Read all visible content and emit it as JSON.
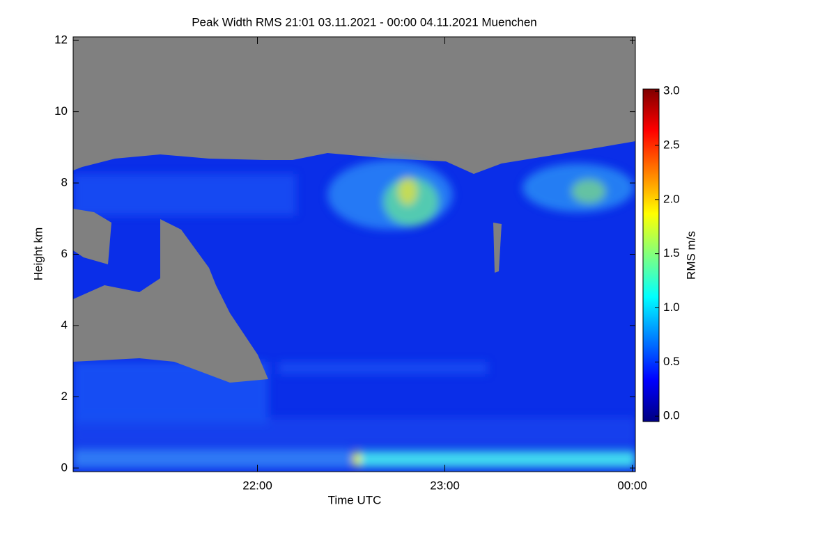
{
  "chart_data": {
    "type": "heatmap",
    "title": "Peak Width RMS   21:01 03.11.2021 - 00:00 04.11.2021 Muenchen",
    "x_label": "Time UTC",
    "y_label": "Height km",
    "xlim": [
      1261,
      1441
    ],
    "xticks": [
      {
        "value": 1320,
        "label": "22:00"
      },
      {
        "value": 1380,
        "label": "23:00"
      },
      {
        "value": 1440,
        "label": "00:00"
      }
    ],
    "ylim": [
      -0.1,
      12.1
    ],
    "yticks": [
      0,
      2,
      4,
      6,
      8,
      10,
      12
    ],
    "colorbar": {
      "label": "RMS m/s",
      "lim": [
        -0.05,
        3.02
      ],
      "ticks": [
        {
          "value": 0,
          "label": "0.0"
        },
        0.5,
        {
          "value": 1,
          "label": "1.0"
        },
        1.5,
        {
          "value": 2,
          "label": "2.0"
        },
        2.5,
        {
          "value": 3,
          "label": "3.0"
        }
      ],
      "colormap": [
        "#00007f",
        "#0000ff",
        "#007fff",
        "#00ffff",
        "#7fff7f",
        "#ffff00",
        "#ff7f00",
        "#ff0000",
        "#7f0000"
      ]
    },
    "no_data_color": "#808080"
  }
}
